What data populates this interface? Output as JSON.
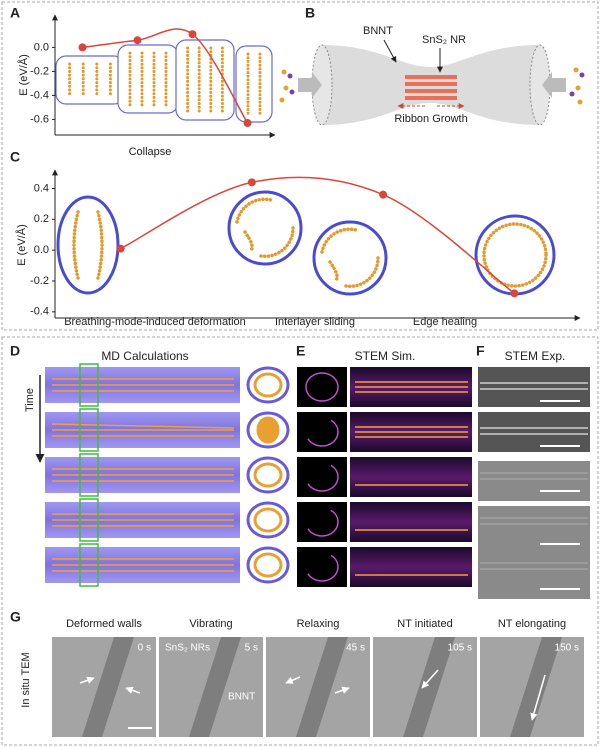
{
  "panel_labels": [
    "A",
    "B",
    "C",
    "D",
    "E",
    "F",
    "G"
  ],
  "chart_data": [
    {
      "type": "line",
      "y_label": "E (eV/Å)",
      "x_label": "Collapse",
      "categories": [
        null,
        null,
        null,
        null
      ],
      "values": [
        0.0,
        0.06,
        0.11,
        -0.63
      ],
      "color": "#d9463b",
      "ylim": [
        -0.73,
        0.27
      ],
      "yticks": [
        {
          "value": 0,
          "label": "0.0"
        },
        -0.2,
        -0.4,
        -0.6
      ]
    },
    {
      "type": "line",
      "y_label": "E (eV/Å)",
      "categories": [
        null,
        null,
        null,
        null
      ],
      "values": [
        0.01,
        0.44,
        0.36,
        -0.28
      ],
      "color": "#d9463b",
      "ylim": [
        -0.44,
        0.52
      ],
      "yticks": [
        0.4,
        0.2,
        {
          "value": 0,
          "label": "0.0"
        },
        -0.2,
        -0.4
      ],
      "annotations": [
        "Breathing-mode-induced deformation",
        "Interlayer sliding",
        "Edge healing"
      ]
    }
  ],
  "schematic": {
    "bnnt": "BNNT",
    "nr": "SnS₂ NR",
    "growth": "Ribbon Growth"
  },
  "md": {
    "title": "MD Calculations",
    "time": "Time"
  },
  "stem_sim": {
    "title": "STEM Sim."
  },
  "stem_exp": {
    "title": "STEM Exp."
  },
  "in_situ": {
    "side_label": "In situ TEM",
    "nrs_label": "SnS₂ NRs",
    "bnnt_label": "BNNT",
    "frames": [
      {
        "label": "Deformed walls",
        "time": "0 s"
      },
      {
        "label": "Vibrating",
        "time": "5 s"
      },
      {
        "label": "Relaxing",
        "time": "45 s"
      },
      {
        "label": "NT initiated",
        "time": "105 s"
      },
      {
        "label": "NT elongating",
        "time": "150 s"
      }
    ]
  }
}
